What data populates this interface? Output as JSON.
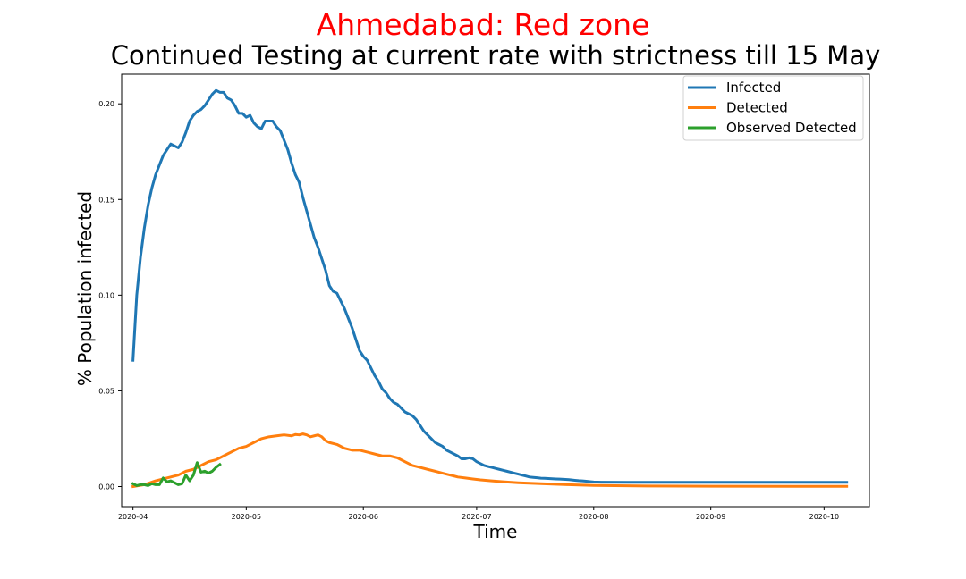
{
  "chart_data": {
    "type": "line",
    "title": "Ahmedabad: Red zone",
    "title_color": "#ff0000",
    "subtitle": "Continued Testing at current rate with strictness till 15 May",
    "xlabel": "Time",
    "ylabel": "% Population infected",
    "xlim": [
      "2020-03-29",
      "2020-10-13"
    ],
    "ylim": [
      -0.0105,
      0.2155
    ],
    "x_ticks": [
      "2020-04",
      "2020-05",
      "2020-06",
      "2020-07",
      "2020-08",
      "2020-09",
      "2020-10"
    ],
    "y_ticks": [
      "0.00",
      "0.05",
      "0.10",
      "0.15",
      "0.20"
    ],
    "grid": false,
    "legend_position": "top-right",
    "series": [
      {
        "name": "Infected",
        "color": "#1f77b4",
        "points": [
          [
            "2020-04-01",
            0.066
          ],
          [
            "2020-04-02",
            0.1
          ],
          [
            "2020-04-03",
            0.12
          ],
          [
            "2020-04-04",
            0.135
          ],
          [
            "2020-04-05",
            0.147
          ],
          [
            "2020-04-06",
            0.156
          ],
          [
            "2020-04-07",
            0.163
          ],
          [
            "2020-04-08",
            0.168
          ],
          [
            "2020-04-09",
            0.173
          ],
          [
            "2020-04-10",
            0.176
          ],
          [
            "2020-04-11",
            0.179
          ],
          [
            "2020-04-12",
            0.178
          ],
          [
            "2020-04-13",
            0.177
          ],
          [
            "2020-04-14",
            0.18
          ],
          [
            "2020-04-15",
            0.185
          ],
          [
            "2020-04-16",
            0.191
          ],
          [
            "2020-04-17",
            0.194
          ],
          [
            "2020-04-18",
            0.196
          ],
          [
            "2020-04-19",
            0.197
          ],
          [
            "2020-04-20",
            0.199
          ],
          [
            "2020-04-21",
            0.202
          ],
          [
            "2020-04-22",
            0.205
          ],
          [
            "2020-04-23",
            0.207
          ],
          [
            "2020-04-24",
            0.206
          ],
          [
            "2020-04-25",
            0.206
          ],
          [
            "2020-04-26",
            0.203
          ],
          [
            "2020-04-27",
            0.202
          ],
          [
            "2020-04-28",
            0.199
          ],
          [
            "2020-04-29",
            0.195
          ],
          [
            "2020-04-30",
            0.195
          ],
          [
            "2020-05-01",
            0.193
          ],
          [
            "2020-05-02",
            0.194
          ],
          [
            "2020-05-03",
            0.19
          ],
          [
            "2020-05-04",
            0.188
          ],
          [
            "2020-05-05",
            0.187
          ],
          [
            "2020-05-06",
            0.191
          ],
          [
            "2020-05-07",
            0.191
          ],
          [
            "2020-05-08",
            0.191
          ],
          [
            "2020-05-09",
            0.188
          ],
          [
            "2020-05-10",
            0.186
          ],
          [
            "2020-05-11",
            0.181
          ],
          [
            "2020-05-12",
            0.176
          ],
          [
            "2020-05-13",
            0.169
          ],
          [
            "2020-05-14",
            0.163
          ],
          [
            "2020-05-15",
            0.159
          ],
          [
            "2020-05-16",
            0.151
          ],
          [
            "2020-05-17",
            0.144
          ],
          [
            "2020-05-18",
            0.137
          ],
          [
            "2020-05-19",
            0.13
          ],
          [
            "2020-05-20",
            0.125
          ],
          [
            "2020-05-21",
            0.119
          ],
          [
            "2020-05-22",
            0.113
          ],
          [
            "2020-05-23",
            0.105
          ],
          [
            "2020-05-24",
            0.102
          ],
          [
            "2020-05-25",
            0.101
          ],
          [
            "2020-05-26",
            0.097
          ],
          [
            "2020-05-27",
            0.093
          ],
          [
            "2020-05-28",
            0.088
          ],
          [
            "2020-05-29",
            0.083
          ],
          [
            "2020-05-30",
            0.077
          ],
          [
            "2020-05-31",
            0.071
          ],
          [
            "2020-06-01",
            0.068
          ],
          [
            "2020-06-02",
            0.066
          ],
          [
            "2020-06-03",
            0.062
          ],
          [
            "2020-06-04",
            0.058
          ],
          [
            "2020-06-05",
            0.055
          ],
          [
            "2020-06-06",
            0.051
          ],
          [
            "2020-06-07",
            0.049
          ],
          [
            "2020-06-08",
            0.046
          ],
          [
            "2020-06-09",
            0.044
          ],
          [
            "2020-06-10",
            0.043
          ],
          [
            "2020-06-11",
            0.041
          ],
          [
            "2020-06-12",
            0.039
          ],
          [
            "2020-06-13",
            0.038
          ],
          [
            "2020-06-14",
            0.037
          ],
          [
            "2020-06-15",
            0.035
          ],
          [
            "2020-06-16",
            0.032
          ],
          [
            "2020-06-17",
            0.029
          ],
          [
            "2020-06-18",
            0.027
          ],
          [
            "2020-06-19",
            0.025
          ],
          [
            "2020-06-20",
            0.023
          ],
          [
            "2020-06-21",
            0.022
          ],
          [
            "2020-06-22",
            0.021
          ],
          [
            "2020-06-23",
            0.019
          ],
          [
            "2020-06-24",
            0.018
          ],
          [
            "2020-06-25",
            0.017
          ],
          [
            "2020-06-26",
            0.016
          ],
          [
            "2020-06-27",
            0.0145
          ],
          [
            "2020-06-28",
            0.0145
          ],
          [
            "2020-06-29",
            0.015
          ],
          [
            "2020-06-30",
            0.0145
          ],
          [
            "2020-07-01",
            0.013
          ],
          [
            "2020-07-02",
            0.012
          ],
          [
            "2020-07-03",
            0.011
          ],
          [
            "2020-07-04",
            0.0105
          ],
          [
            "2020-07-05",
            0.01
          ],
          [
            "2020-07-06",
            0.0095
          ],
          [
            "2020-07-07",
            0.009
          ],
          [
            "2020-07-08",
            0.0085
          ],
          [
            "2020-07-09",
            0.008
          ],
          [
            "2020-07-10",
            0.0075
          ],
          [
            "2020-07-11",
            0.007
          ],
          [
            "2020-07-12",
            0.0065
          ],
          [
            "2020-07-13",
            0.006
          ],
          [
            "2020-07-14",
            0.0055
          ],
          [
            "2020-07-15",
            0.005
          ],
          [
            "2020-07-16",
            0.0048
          ],
          [
            "2020-07-17",
            0.0046
          ],
          [
            "2020-07-18",
            0.0044
          ],
          [
            "2020-07-19",
            0.0043
          ],
          [
            "2020-07-20",
            0.0042
          ],
          [
            "2020-07-21",
            0.0041
          ],
          [
            "2020-07-22",
            0.004
          ],
          [
            "2020-07-23",
            0.0039
          ],
          [
            "2020-07-24",
            0.0038
          ],
          [
            "2020-07-25",
            0.0037
          ],
          [
            "2020-07-26",
            0.0035
          ],
          [
            "2020-07-27",
            0.0033
          ],
          [
            "2020-07-28",
            0.0031
          ],
          [
            "2020-07-29",
            0.003
          ],
          [
            "2020-07-30",
            0.0028
          ],
          [
            "2020-07-31",
            0.0026
          ],
          [
            "2020-08-01",
            0.0024
          ],
          [
            "2020-08-03",
            0.0023
          ],
          [
            "2020-08-10",
            0.0022
          ],
          [
            "2020-08-20",
            0.0022
          ],
          [
            "2020-09-01",
            0.0022
          ],
          [
            "2020-09-15",
            0.0022
          ],
          [
            "2020-10-01",
            0.0022
          ],
          [
            "2020-10-07",
            0.0022
          ]
        ]
      },
      {
        "name": "Detected",
        "color": "#ff7f0e",
        "points": [
          [
            "2020-04-01",
            0.0
          ],
          [
            "2020-04-04",
            0.001
          ],
          [
            "2020-04-07",
            0.003
          ],
          [
            "2020-04-09",
            0.004
          ],
          [
            "2020-04-11",
            0.005
          ],
          [
            "2020-04-13",
            0.006
          ],
          [
            "2020-04-15",
            0.008
          ],
          [
            "2020-04-17",
            0.009
          ],
          [
            "2020-04-19",
            0.011
          ],
          [
            "2020-04-21",
            0.013
          ],
          [
            "2020-04-23",
            0.014
          ],
          [
            "2020-04-25",
            0.016
          ],
          [
            "2020-04-27",
            0.018
          ],
          [
            "2020-04-29",
            0.02
          ],
          [
            "2020-05-01",
            0.021
          ],
          [
            "2020-05-03",
            0.023
          ],
          [
            "2020-05-05",
            0.025
          ],
          [
            "2020-05-07",
            0.026
          ],
          [
            "2020-05-09",
            0.0265
          ],
          [
            "2020-05-11",
            0.027
          ],
          [
            "2020-05-13",
            0.0265
          ],
          [
            "2020-05-14",
            0.0272
          ],
          [
            "2020-05-15",
            0.027
          ],
          [
            "2020-05-16",
            0.0275
          ],
          [
            "2020-05-17",
            0.027
          ],
          [
            "2020-05-18",
            0.026
          ],
          [
            "2020-05-19",
            0.0265
          ],
          [
            "2020-05-20",
            0.027
          ],
          [
            "2020-05-21",
            0.026
          ],
          [
            "2020-05-22",
            0.024
          ],
          [
            "2020-05-23",
            0.023
          ],
          [
            "2020-05-25",
            0.022
          ],
          [
            "2020-05-27",
            0.02
          ],
          [
            "2020-05-29",
            0.019
          ],
          [
            "2020-05-31",
            0.019
          ],
          [
            "2020-06-02",
            0.018
          ],
          [
            "2020-06-04",
            0.017
          ],
          [
            "2020-06-06",
            0.016
          ],
          [
            "2020-06-08",
            0.016
          ],
          [
            "2020-06-10",
            0.015
          ],
          [
            "2020-06-12",
            0.013
          ],
          [
            "2020-06-14",
            0.011
          ],
          [
            "2020-06-16",
            0.01
          ],
          [
            "2020-06-18",
            0.009
          ],
          [
            "2020-06-20",
            0.008
          ],
          [
            "2020-06-22",
            0.007
          ],
          [
            "2020-06-24",
            0.006
          ],
          [
            "2020-06-26",
            0.005
          ],
          [
            "2020-06-28",
            0.0045
          ],
          [
            "2020-06-30",
            0.004
          ],
          [
            "2020-07-02",
            0.0035
          ],
          [
            "2020-07-05",
            0.003
          ],
          [
            "2020-07-08",
            0.0025
          ],
          [
            "2020-07-12",
            0.002
          ],
          [
            "2020-07-18",
            0.0015
          ],
          [
            "2020-07-25",
            0.001
          ],
          [
            "2020-08-01",
            0.0006
          ],
          [
            "2020-08-15",
            0.0003
          ],
          [
            "2020-09-01",
            0.0002
          ],
          [
            "2020-10-07",
            0.0001
          ]
        ]
      },
      {
        "name": "Observed Detected",
        "color": "#2ca02c",
        "points": [
          [
            "2020-04-01",
            0.0015
          ],
          [
            "2020-04-02",
            0.0005
          ],
          [
            "2020-04-03",
            0.001
          ],
          [
            "2020-04-04",
            0.001
          ],
          [
            "2020-04-05",
            0.0005
          ],
          [
            "2020-04-06",
            0.0015
          ],
          [
            "2020-04-07",
            0.001
          ],
          [
            "2020-04-08",
            0.001
          ],
          [
            "2020-04-09",
            0.0045
          ],
          [
            "2020-04-10",
            0.0025
          ],
          [
            "2020-04-11",
            0.003
          ],
          [
            "2020-04-12",
            0.002
          ],
          [
            "2020-04-13",
            0.001
          ],
          [
            "2020-04-14",
            0.0015
          ],
          [
            "2020-04-15",
            0.006
          ],
          [
            "2020-04-16",
            0.003
          ],
          [
            "2020-04-17",
            0.006
          ],
          [
            "2020-04-18",
            0.0125
          ],
          [
            "2020-04-19",
            0.0075
          ],
          [
            "2020-04-20",
            0.008
          ],
          [
            "2020-04-21",
            0.007
          ],
          [
            "2020-04-22",
            0.008
          ],
          [
            "2020-04-23",
            0.01
          ],
          [
            "2020-04-24",
            0.0115
          ]
        ]
      }
    ]
  }
}
